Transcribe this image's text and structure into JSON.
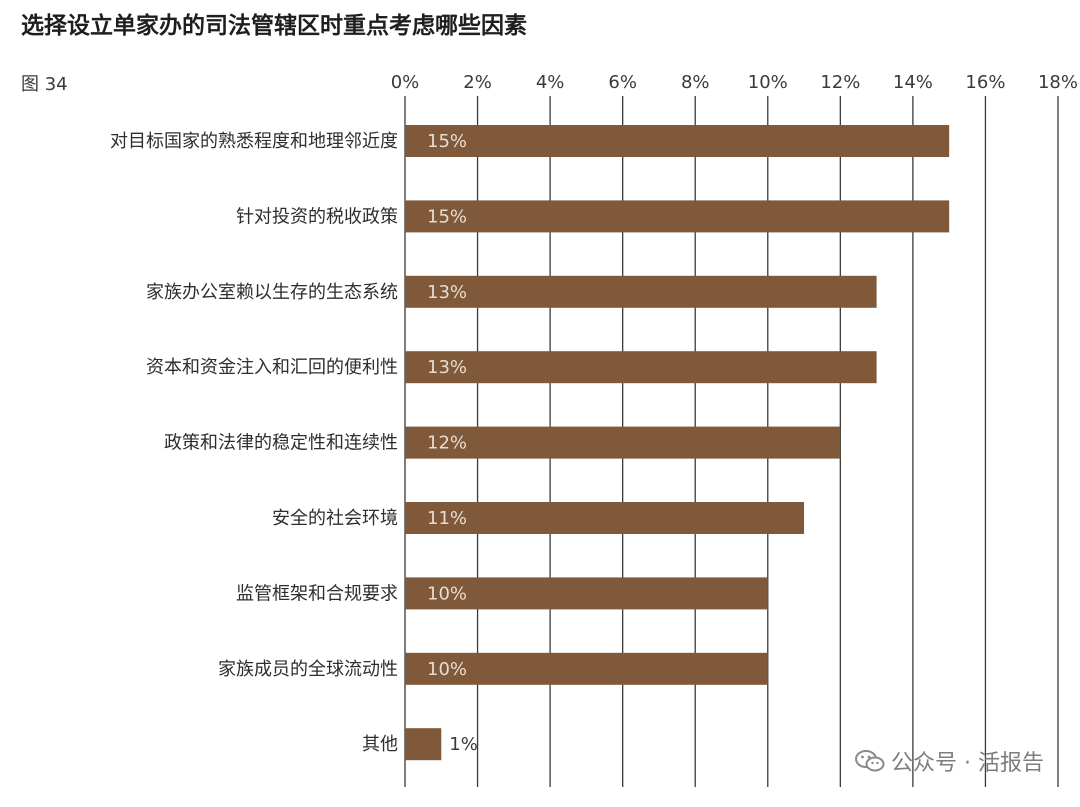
{
  "title": "选择设立单家办的司法管辖区时重点考虑哪些因素",
  "figure_label": "图 34",
  "watermark": {
    "text": "公众号 · 活报告",
    "icon": "wechat-icon"
  },
  "colors": {
    "bar": "#7f5939",
    "grid": "#3a3a3a",
    "label_inside": "#e8dccf",
    "label_outside": "#3a3a3a"
  },
  "chart_data": {
    "type": "bar",
    "orientation": "horizontal",
    "title": "选择设立单家办的司法管辖区时重点考虑哪些因素",
    "xlabel": "",
    "ylabel": "",
    "xlim": [
      0,
      18
    ],
    "x_ticks": [
      0,
      2,
      4,
      6,
      8,
      10,
      12,
      14,
      16,
      18
    ],
    "x_tick_labels": [
      "0%",
      "2%",
      "4%",
      "6%",
      "8%",
      "10%",
      "12%",
      "14%",
      "16%",
      "18%"
    ],
    "grid": true,
    "axis_position": "top",
    "categories": [
      "对目标国家的熟悉程度和地理邻近度",
      "针对投资的税收政策",
      "家族办公室赖以生存的生态系统",
      "资本和资金注入和汇回的便利性",
      "政策和法律的稳定性和连续性",
      "安全的社会环境",
      "监管框架和合规要求",
      "家族成员的全球流动性",
      "其他"
    ],
    "values": [
      15,
      15,
      13,
      13,
      12,
      11,
      10,
      10,
      1
    ],
    "data_labels": [
      "15%",
      "15%",
      "13%",
      "13%",
      "12%",
      "11%",
      "10%",
      "10%",
      "1%"
    ]
  }
}
